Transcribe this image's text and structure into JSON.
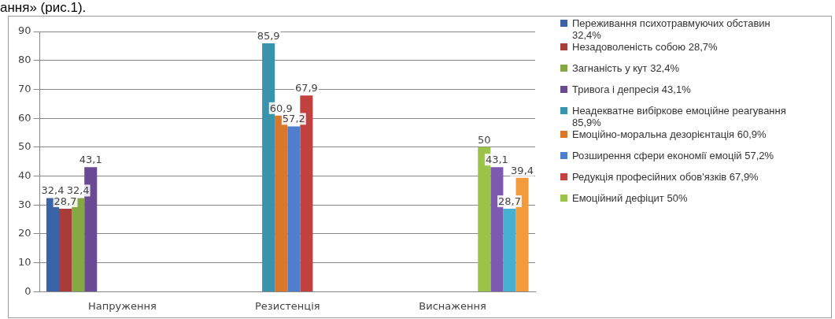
{
  "chart_data": {
    "type": "bar",
    "annotations": [
      "ання» (рис.1)."
    ],
    "categories": [
      "Напруження",
      "Резистенція",
      "Виснаження"
    ],
    "ylim": [
      0,
      90
    ],
    "yticks": [
      0,
      10,
      20,
      30,
      40,
      50,
      60,
      70,
      80,
      90
    ],
    "grid": "y",
    "legend": "right",
    "series": [
      {
        "name": "Переживання психотравмуючих обставин 32,4%",
        "color": "#3b64a8",
        "values": [
          32.4,
          null,
          null
        ],
        "value_labels": [
          "32,4",
          null,
          null
        ]
      },
      {
        "name": "Незадоволеність собою 28,7%",
        "color": "#a83c3a",
        "values": [
          28.7,
          null,
          null
        ],
        "value_labels": [
          "28,7",
          null,
          null
        ]
      },
      {
        "name": "Загнаність у кут 32,4%",
        "color": "#86a844",
        "values": [
          32.4,
          null,
          null
        ],
        "value_labels": [
          "32,4",
          null,
          null
        ]
      },
      {
        "name": "Тривога і депресія 43,1%",
        "color": "#6b4a94",
        "values": [
          43.1,
          null,
          null
        ],
        "value_labels": [
          "43,1",
          null,
          null
        ]
      },
      {
        "name": "Неадекватне вибіркове емоційне реагування 85,9%",
        "color": "#3a93ad",
        "values": [
          null,
          85.9,
          null
        ],
        "value_labels": [
          null,
          "85,9",
          null
        ]
      },
      {
        "name": "Емоційно-моральна дезорієнтація 60,9%",
        "color": "#d9772b",
        "values": [
          null,
          60.9,
          null
        ],
        "value_labels": [
          null,
          "60,9",
          null
        ]
      },
      {
        "name": "Розширення сфери економії емоцій 57,2%",
        "color": "#4f7fcc",
        "values": [
          null,
          57.2,
          null
        ],
        "value_labels": [
          null,
          "57,2",
          null
        ]
      },
      {
        "name": "Редукція професійних обов'язків 67,9%",
        "color": "#c0413e",
        "values": [
          null,
          67.9,
          null
        ],
        "value_labels": [
          null,
          "67,9",
          null
        ]
      },
      {
        "name": "Емоційний дефіцит 50%",
        "color": "#9bc348",
        "values": [
          null,
          null,
          50
        ],
        "value_labels": [
          null,
          null,
          "50"
        ]
      },
      {
        "color": "#7d5ab0",
        "values": [
          null,
          null,
          43.1
        ],
        "value_labels": [
          null,
          null,
          "43,1"
        ]
      },
      {
        "color": "#45b0d0",
        "values": [
          null,
          null,
          28.7
        ],
        "value_labels": [
          null,
          null,
          "28,7"
        ]
      },
      {
        "color": "#f39a3c",
        "values": [
          null,
          null,
          39.4
        ],
        "value_labels": [
          null,
          null,
          "39,4"
        ]
      }
    ]
  }
}
